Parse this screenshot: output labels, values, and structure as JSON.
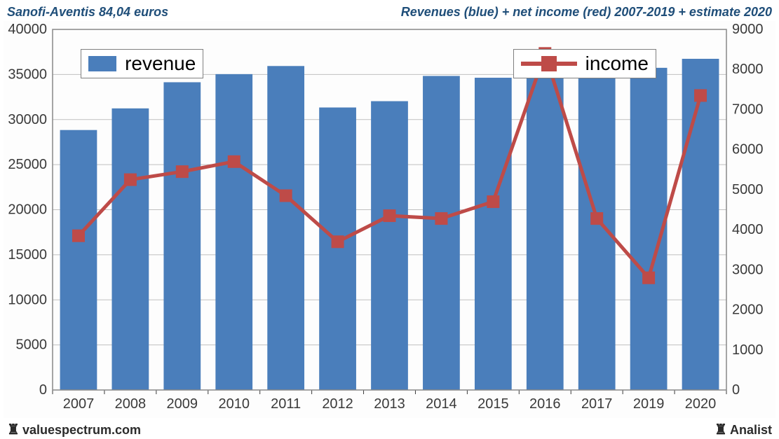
{
  "header": {
    "left": "Sanofi-Aventis 84,04 euros",
    "right": "Revenues (blue) + net income (red) 2007-2019 + estimate 2020",
    "color": "#1f4e79",
    "fontsize_pt": 18
  },
  "footer": {
    "left": "valuespectrum.com",
    "right": "Analist",
    "icon": "♜",
    "color": "#2b2b2b"
  },
  "chart": {
    "type": "bar+line",
    "background_color": "#fdfdfd",
    "plot_border_color": "#888888",
    "grid_color": "#c0c0c0",
    "axis_label_color": "#3a3a3a",
    "axis_label_fontsize": 20,
    "legend_border_color": "#808080",
    "legend_fontsize": 28,
    "categories": [
      "2007",
      "2008",
      "2009",
      "2010",
      "2011",
      "2012",
      "2013",
      "2014",
      "2015",
      "2016",
      "2017",
      "2019",
      "2020"
    ],
    "y_left": {
      "min": 0,
      "max": 40000,
      "step": 5000
    },
    "y_right": {
      "min": 0,
      "max": 9000,
      "step": 1000
    },
    "bars": {
      "label": "revenue",
      "color": "#4a7ebb",
      "border_color": "#4a7ebb",
      "width_ratio": 0.7,
      "values": [
        28800,
        31200,
        34100,
        35000,
        35900,
        31300,
        32000,
        34800,
        34600,
        36200,
        35600,
        35700,
        36700
      ]
    },
    "line": {
      "label": "income",
      "color": "#be4b48",
      "line_width": 5,
      "marker_size": 18,
      "marker_shape": "square",
      "values": [
        3850,
        5250,
        5450,
        5700,
        4850,
        3700,
        4350,
        4280,
        4700,
        8400,
        4280,
        2800,
        7350
      ]
    },
    "legend_bar_pos": {
      "left_pct": 10,
      "top_pct": 7
    },
    "legend_line_pos": {
      "left_pct": 66,
      "top_pct": 7
    }
  }
}
